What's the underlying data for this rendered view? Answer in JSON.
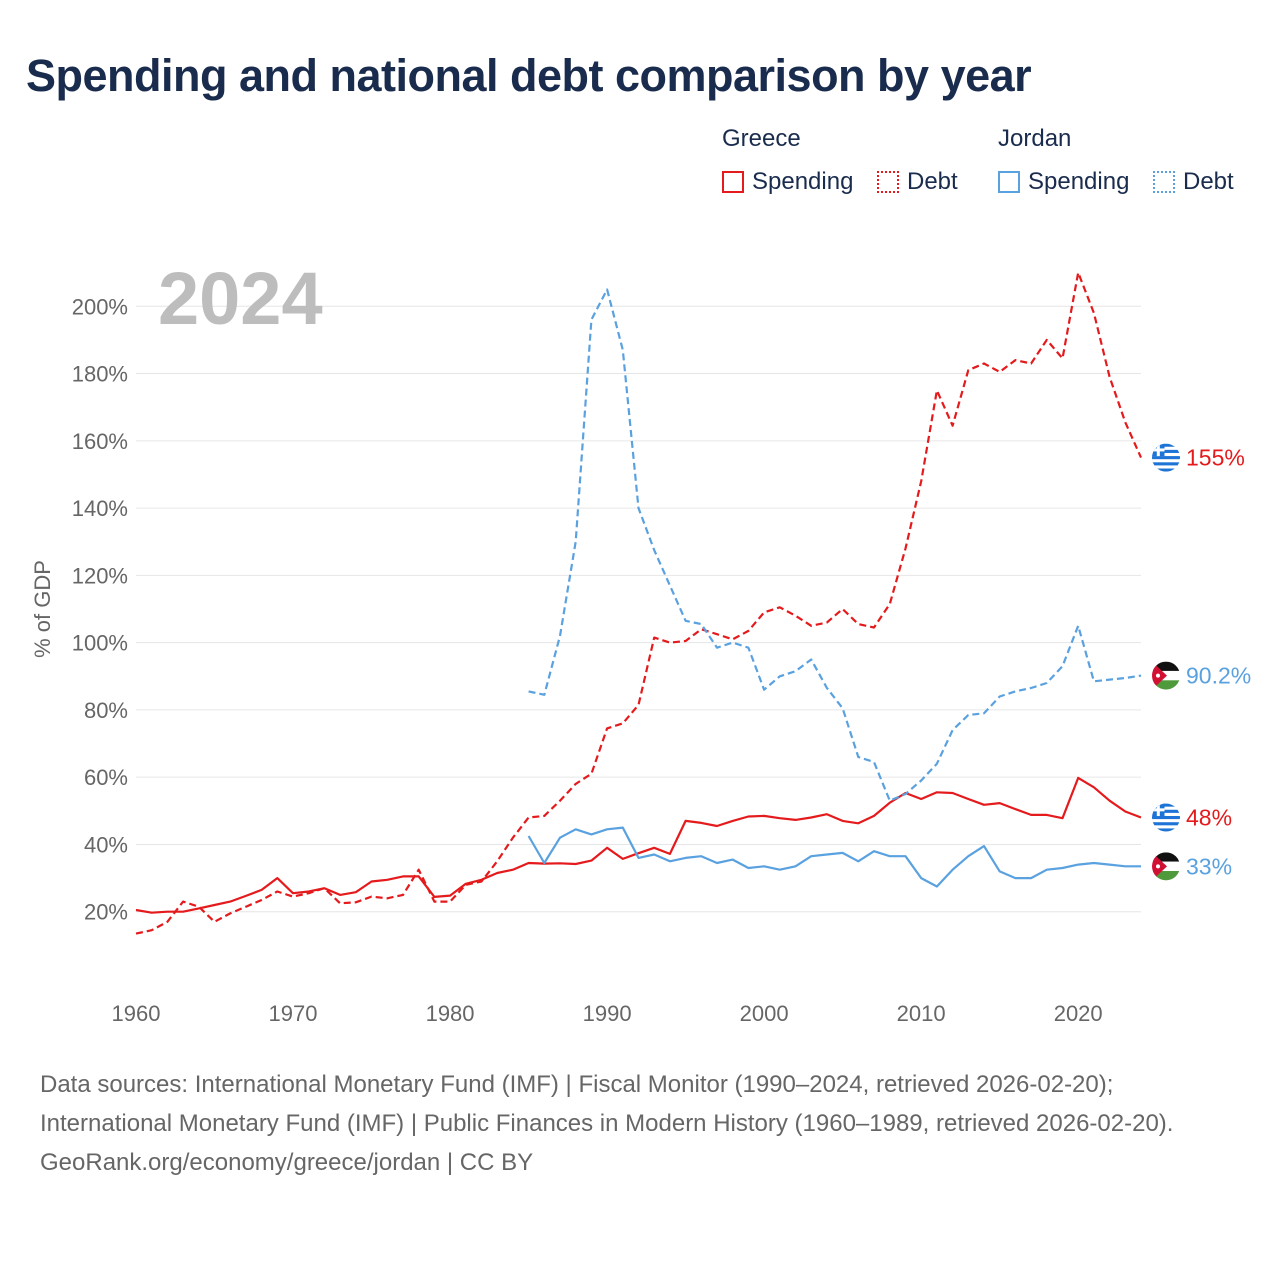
{
  "title": "Spending and national debt comparison by year",
  "legend": {
    "groups": [
      {
        "name": "Greece",
        "color": "#e41a1c",
        "items": [
          {
            "label": "Spending",
            "style": "solid"
          },
          {
            "label": "Debt",
            "style": "dotted"
          }
        ]
      },
      {
        "name": "Jordan",
        "color": "#5aa1e0",
        "items": [
          {
            "label": "Spending",
            "style": "solid"
          },
          {
            "label": "Debt",
            "style": "dotted"
          }
        ]
      }
    ]
  },
  "year_watermark": "2024",
  "footer": {
    "sources": "Data sources: International Monetary Fund (IMF) | Fiscal Monitor (1990–2024, retrieved 2026-02-20); International Monetary Fund (IMF) | Public Finances in Modern History (1960–1989, retrieved 2026-02-20).",
    "credit": "GeoRank.org/economy/greece/jordan | CC BY"
  },
  "chart_data": {
    "type": "line",
    "title": "Spending and national debt comparison by year",
    "xlabel": "",
    "ylabel": "% of GDP",
    "xlim": [
      1960,
      2024
    ],
    "ylim": [
      0,
      220
    ],
    "xticks": [
      1960,
      1970,
      1980,
      1990,
      2000,
      2010,
      2020
    ],
    "xtick_labels": [
      "1960",
      "1970",
      "1980",
      "1990",
      "2000",
      "2010",
      "2020"
    ],
    "yticks": [
      20,
      40,
      60,
      80,
      100,
      120,
      140,
      160,
      180,
      200
    ],
    "ytick_labels": [
      "20%",
      "40%",
      "60%",
      "80%",
      "100%",
      "120%",
      "140%",
      "160%",
      "180%",
      "200%"
    ],
    "grid": true,
    "series": [
      {
        "name": "Greece Spending",
        "color": "#e41a1c",
        "dash": "solid",
        "start": 1960,
        "end_label": "48%",
        "values": [
          20.5,
          19.7,
          20,
          20,
          21,
          22,
          23,
          24.7,
          26.5,
          30,
          25.5,
          26,
          27,
          25,
          25.8,
          29,
          29.5,
          30.5,
          30.5,
          24.4,
          24.8,
          28.3,
          29.5,
          31.5,
          32.5,
          34.5,
          34.3,
          34.4,
          34.2,
          35.2,
          39,
          35.7,
          37.4,
          39,
          37.2,
          47,
          46.4,
          45.5,
          47,
          48.3,
          48.5,
          47.8,
          47.3,
          48,
          49,
          47,
          46.3,
          48.5,
          52.4,
          55.3,
          53.5,
          55.5,
          55.3,
          53.5,
          51.8,
          52.3,
          50.5,
          48.8,
          48.8,
          47.8,
          59.8,
          57,
          53,
          49.8,
          48
        ]
      },
      {
        "name": "Greece Debt",
        "color": "#e41a1c",
        "dash": "dotted",
        "start": 1960,
        "end_label": "155%",
        "values": [
          13.5,
          14.5,
          17,
          23,
          21.5,
          17,
          19.5,
          21.5,
          23.5,
          26,
          24.5,
          25.5,
          27,
          22.5,
          22.8,
          24.5,
          24,
          25,
          32.5,
          23,
          23,
          28,
          29,
          35,
          42,
          48,
          48.5,
          53,
          58,
          61,
          74.5,
          76,
          81.5,
          101.5,
          100,
          100.5,
          104,
          102.5,
          101,
          103.5,
          109,
          110.5,
          108,
          105,
          106,
          110,
          105.5,
          104.5,
          111.5,
          128,
          148,
          175,
          164.5,
          181,
          183,
          180.5,
          184,
          183,
          190,
          184.5,
          210,
          198,
          179,
          165.5,
          155
        ]
      },
      {
        "name": "Jordan Spending",
        "color": "#5aa1e0",
        "dash": "solid",
        "start": 1985,
        "end_label": "33%",
        "values": [
          42.5,
          34.5,
          42,
          44.5,
          43,
          44.5,
          45,
          36,
          37,
          35,
          36,
          36.5,
          34.5,
          35.5,
          33,
          33.5,
          32.5,
          33.5,
          36.5,
          37,
          37.5,
          35,
          38,
          36.5,
          36.5,
          30,
          27.5,
          32.5,
          36.5,
          39.5,
          32,
          30,
          30,
          32.5,
          33,
          34,
          34.5,
          34,
          33.5,
          33.5
        ]
      },
      {
        "name": "Jordan Debt",
        "color": "#5aa1e0",
        "dash": "dotted",
        "start": 1985,
        "end_label": "90.2%",
        "values": [
          85.5,
          84.5,
          102,
          130,
          196,
          205,
          187,
          140,
          127.5,
          117,
          106.5,
          105.5,
          98.5,
          100,
          98.5,
          86,
          90,
          91.5,
          95,
          86.5,
          80.5,
          66,
          64.5,
          53,
          55,
          59,
          64,
          74,
          78.5,
          79,
          84,
          85.5,
          86.5,
          88,
          93,
          105,
          88.5,
          89,
          89.5,
          90.2
        ]
      }
    ]
  }
}
